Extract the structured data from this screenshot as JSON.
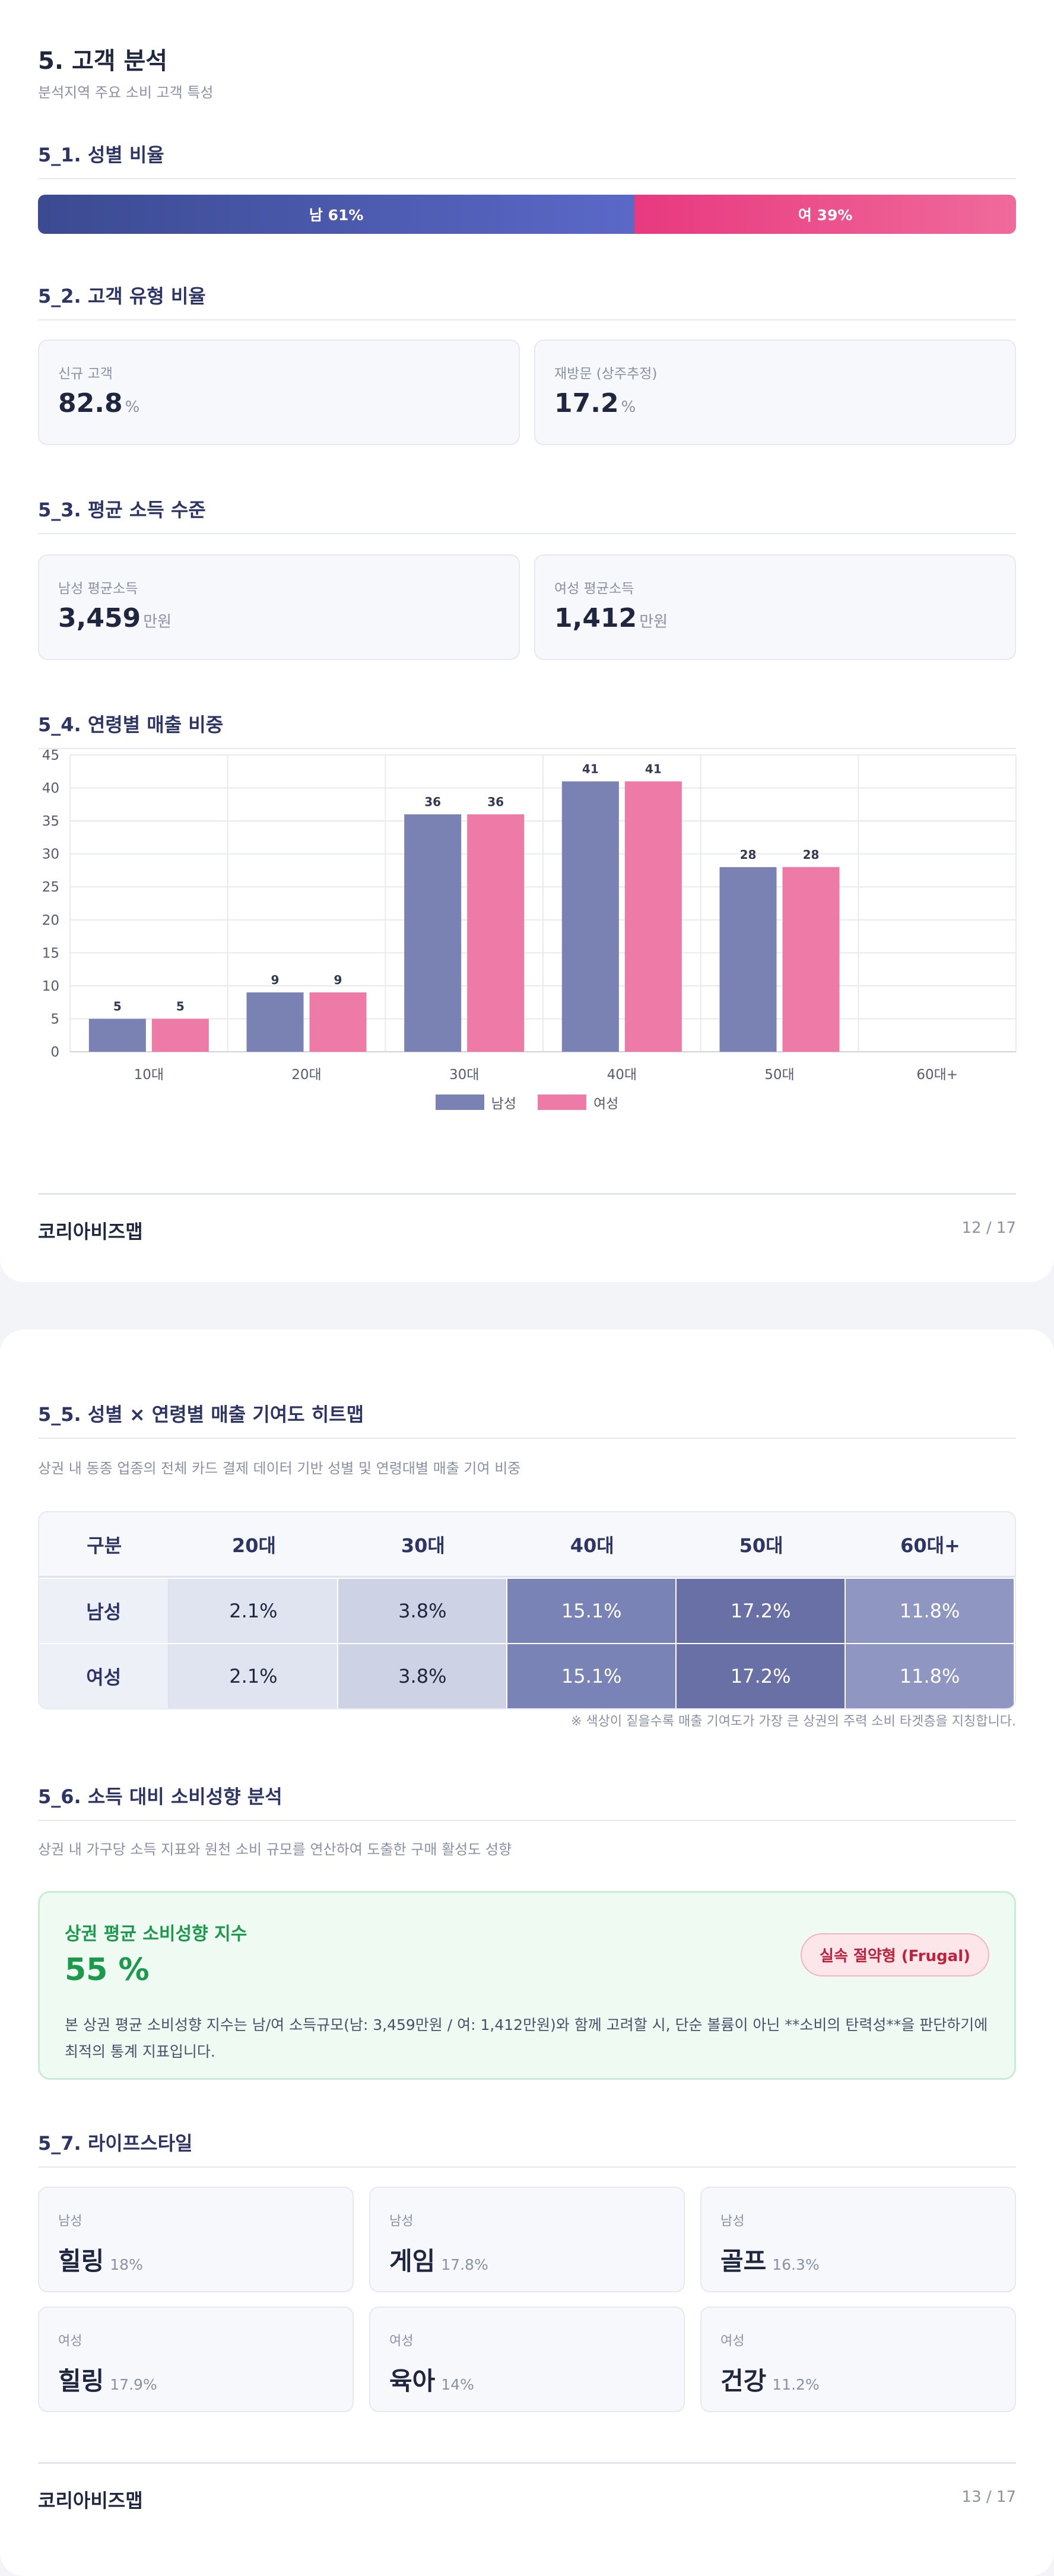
{
  "page1": {
    "title": "5. 고객 분석",
    "subtitle": "분석지역 주요 소비 고객 특성",
    "gender": {
      "title": "5_1. 성별 비율",
      "male_label": "남 61%",
      "female_label": "여 39%",
      "male_pct": 61,
      "female_pct": 39
    },
    "customer_type": {
      "title": "5_2. 고객 유형 비율",
      "new_label": "신규 고객",
      "new_value": "82.8",
      "revisit_label": "재방문 (상주추정)",
      "revisit_value": "17.2",
      "unit": "%"
    },
    "income": {
      "title": "5_3. 평균 소득 수준",
      "male_label": "남성 평균소득",
      "male_value": "3,459",
      "female_label": "여성 평균소득",
      "female_value": "1,412",
      "unit": "만원"
    },
    "age_sales": {
      "title": "5_4. 연령별 매출 비중"
    },
    "footer": {
      "brand": "코리아비즈맵",
      "page": "12 / 17"
    }
  },
  "chart_data": {
    "type": "bar",
    "categories": [
      "10대",
      "20대",
      "30대",
      "40대",
      "50대",
      "60대+"
    ],
    "series": [
      {
        "name": "남성",
        "values": [
          5,
          9,
          36,
          41,
          28,
          0
        ],
        "color": "#7a82b3"
      },
      {
        "name": "여성",
        "values": [
          5,
          9,
          36,
          41,
          28,
          0
        ],
        "color": "#ee7aa7"
      }
    ],
    "data_labels": [
      "5",
      "9",
      "36",
      "41",
      "28",
      ""
    ],
    "ylim": [
      0,
      45
    ],
    "yticks": [
      0,
      5,
      10,
      15,
      20,
      25,
      30,
      35,
      40,
      45
    ],
    "grid": true,
    "legend_position": "bottom"
  },
  "page2": {
    "heatmap": {
      "title": "5_5. 성별 × 연령별 매출 기여도 히트맵",
      "description": "상권 내 동종 업종의 전체 카드 결제 데이터 기반 성별 및 연령대별 매출 기여 비중",
      "header": [
        "구분",
        "20대",
        "30대",
        "40대",
        "50대",
        "60대+"
      ],
      "rows": [
        {
          "label": "남성",
          "cells": [
            "2.1%",
            "3.8%",
            "15.1%",
            "17.2%",
            "11.8%"
          ]
        },
        {
          "label": "여성",
          "cells": [
            "2.1%",
            "3.8%",
            "15.1%",
            "17.2%",
            "11.8%"
          ]
        }
      ],
      "cell_colors": [
        "#e0e3f0",
        "#ced2e5",
        "#7a83b5",
        "#6870a6",
        "#8e96c1"
      ],
      "note": "※ 색상이 짙을수록 매출 기여도가 가장 큰 상권의 주력 소비 타겟층을 지칭합니다."
    },
    "consumption": {
      "title": "5_6. 소득 대비 소비성향 분석",
      "description": "상권 내 가구당 소득 지표와 원천 소비 규모를 연산하여 도출한 구매 활성도 성향",
      "box_title": "상권 평균 소비성향 지수",
      "value": "55 %",
      "badge": "실속 절약형 (Frugal)",
      "text": "본 상권 평균 소비성향 지수는 남/여 소득규모(남: 3,459만원 / 여: 1,412만원)와 함께 고려할 시, 단순 볼륨이 아닌 **소비의 탄력성**을 판단하기에 최적의 통계 지표입니다."
    },
    "lifestyle": {
      "title": "5_7. 라이프스타일",
      "items": [
        {
          "gender": "남성",
          "name": "힐링",
          "pct": "18%"
        },
        {
          "gender": "남성",
          "name": "게임",
          "pct": "17.8%"
        },
        {
          "gender": "남성",
          "name": "골프",
          "pct": "16.3%"
        },
        {
          "gender": "여성",
          "name": "힐링",
          "pct": "17.9%"
        },
        {
          "gender": "여성",
          "name": "육아",
          "pct": "14%"
        },
        {
          "gender": "여성",
          "name": "건강",
          "pct": "11.2%"
        }
      ]
    },
    "footer": {
      "brand": "코리아비즈맵",
      "page": "13 / 17"
    }
  }
}
